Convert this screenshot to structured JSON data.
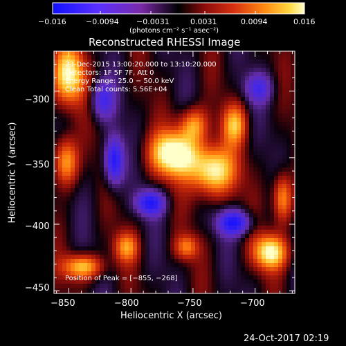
{
  "colorbar": {
    "ticks": [
      "−0.016",
      "−0.0094",
      "−0.0031",
      "0.0031",
      "0.0094",
      "0.016"
    ],
    "unit_label": "(photons cm⁻² s⁻¹ asec⁻²)",
    "range": [
      -0.016,
      0.016
    ]
  },
  "plot": {
    "title": "Reconstructed RHESSI Image",
    "xlabel": "Heliocentric X (arcsec)",
    "ylabel": "Heliocentric Y (arcsec)",
    "x_ticks": [
      "−850",
      "−800",
      "−750",
      "−700"
    ],
    "y_ticks": [
      "−300",
      "−350",
      "−400",
      "−450"
    ],
    "x_range": [
      -862,
      -668
    ],
    "y_range": [
      -452,
      -270
    ],
    "peak_label": "Position of Peak = [−855, −268]"
  },
  "info": {
    "line1": "23-Dec-2015 13:00:20.000 to 13:10:20.000",
    "line2": "Detectors: 1F 5F 7F, Att 0",
    "line3": "Energy Range: 25.0 − 50.0 keV",
    "line4": "Clean     Total counts: 5.56E+04"
  },
  "footer": {
    "timestamp": "24-Oct-2017 02:19"
  },
  "colors": {
    "background": "#000000",
    "text": "#ffffff",
    "map_low": "#2020ff",
    "map_mid": "#000000",
    "map_high": "#ffff80"
  }
}
